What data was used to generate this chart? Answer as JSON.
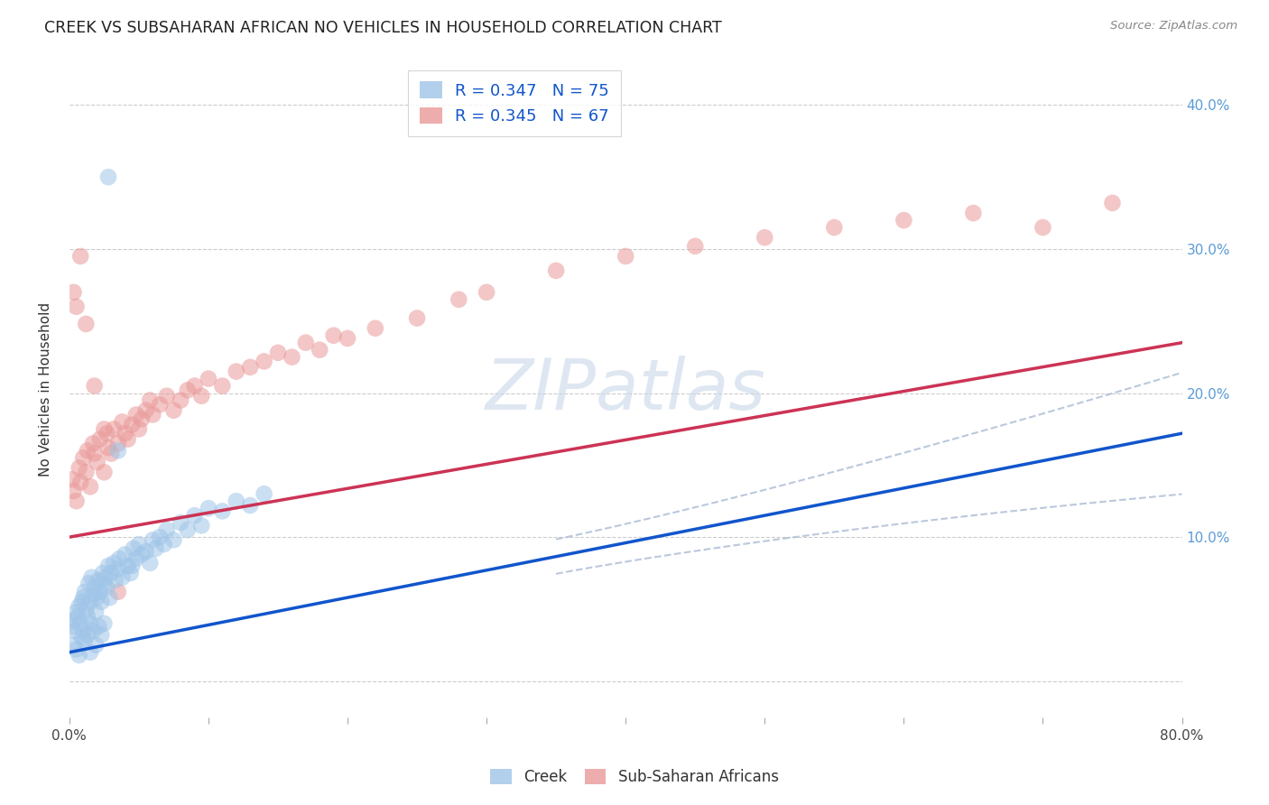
{
  "title": "CREEK VS SUBSAHARAN AFRICAN NO VEHICLES IN HOUSEHOLD CORRELATION CHART",
  "source": "Source: ZipAtlas.com",
  "ylabel": "No Vehicles in Household",
  "creek_color": "#9fc5e8",
  "subsaharan_color": "#ea9999",
  "creek_line_color": "#1155cc",
  "subsaharan_line_color": "#cc3355",
  "conf_band_color": "#aabbd4",
  "watermark_color": "#c8d8e8",
  "xlim": [
    0.0,
    0.8
  ],
  "ylim": [
    -0.025,
    0.43
  ],
  "xticks": [
    0.0,
    0.1,
    0.2,
    0.3,
    0.4,
    0.5,
    0.6,
    0.7,
    0.8
  ],
  "xticklabels": [
    "0.0%",
    "",
    "",
    "",
    "",
    "",
    "",
    "",
    "80.0%"
  ],
  "yticks": [
    0.0,
    0.1,
    0.2,
    0.3,
    0.4
  ],
  "right_yticklabels": [
    "",
    "10.0%",
    "20.0%",
    "30.0%",
    "40.0%"
  ],
  "creek_x": [
    0.002,
    0.003,
    0.004,
    0.005,
    0.006,
    0.007,
    0.008,
    0.009,
    0.01,
    0.01,
    0.011,
    0.012,
    0.013,
    0.014,
    0.015,
    0.015,
    0.016,
    0.017,
    0.018,
    0.019,
    0.02,
    0.021,
    0.022,
    0.023,
    0.024,
    0.025,
    0.026,
    0.027,
    0.028,
    0.029,
    0.03,
    0.032,
    0.033,
    0.035,
    0.036,
    0.038,
    0.04,
    0.042,
    0.044,
    0.046,
    0.048,
    0.05,
    0.052,
    0.055,
    0.058,
    0.06,
    0.062,
    0.065,
    0.068,
    0.07,
    0.075,
    0.08,
    0.085,
    0.09,
    0.095,
    0.1,
    0.11,
    0.12,
    0.13,
    0.14,
    0.003,
    0.005,
    0.007,
    0.009,
    0.011,
    0.013,
    0.015,
    0.017,
    0.019,
    0.021,
    0.023,
    0.025,
    0.028,
    0.035,
    0.045
  ],
  "creek_y": [
    0.038,
    0.042,
    0.035,
    0.048,
    0.045,
    0.052,
    0.04,
    0.055,
    0.058,
    0.035,
    0.062,
    0.05,
    0.045,
    0.068,
    0.055,
    0.04,
    0.072,
    0.06,
    0.065,
    0.048,
    0.058,
    0.07,
    0.062,
    0.055,
    0.075,
    0.068,
    0.072,
    0.065,
    0.08,
    0.058,
    0.075,
    0.082,
    0.07,
    0.078,
    0.085,
    0.072,
    0.088,
    0.08,
    0.075,
    0.092,
    0.085,
    0.095,
    0.088,
    0.09,
    0.082,
    0.098,
    0.092,
    0.1,
    0.095,
    0.105,
    0.098,
    0.11,
    0.105,
    0.115,
    0.108,
    0.12,
    0.118,
    0.125,
    0.122,
    0.13,
    0.025,
    0.022,
    0.018,
    0.03,
    0.028,
    0.032,
    0.02,
    0.035,
    0.025,
    0.038,
    0.032,
    0.04,
    0.35,
    0.16,
    0.08
  ],
  "subsaharan_x": [
    0.002,
    0.003,
    0.005,
    0.007,
    0.008,
    0.01,
    0.012,
    0.013,
    0.015,
    0.017,
    0.018,
    0.02,
    0.022,
    0.025,
    0.027,
    0.028,
    0.03,
    0.032,
    0.035,
    0.038,
    0.04,
    0.042,
    0.045,
    0.048,
    0.05,
    0.052,
    0.055,
    0.058,
    0.06,
    0.065,
    0.07,
    0.075,
    0.08,
    0.085,
    0.09,
    0.095,
    0.1,
    0.11,
    0.12,
    0.13,
    0.14,
    0.15,
    0.16,
    0.17,
    0.18,
    0.19,
    0.2,
    0.22,
    0.25,
    0.28,
    0.3,
    0.35,
    0.4,
    0.45,
    0.5,
    0.55,
    0.6,
    0.65,
    0.7,
    0.75,
    0.003,
    0.005,
    0.008,
    0.012,
    0.018,
    0.025,
    0.035
  ],
  "subsaharan_y": [
    0.14,
    0.132,
    0.125,
    0.148,
    0.138,
    0.155,
    0.145,
    0.16,
    0.135,
    0.165,
    0.158,
    0.152,
    0.168,
    0.145,
    0.172,
    0.162,
    0.158,
    0.175,
    0.165,
    0.18,
    0.172,
    0.168,
    0.178,
    0.185,
    0.175,
    0.182,
    0.188,
    0.195,
    0.185,
    0.192,
    0.198,
    0.188,
    0.195,
    0.202,
    0.205,
    0.198,
    0.21,
    0.205,
    0.215,
    0.218,
    0.222,
    0.228,
    0.225,
    0.235,
    0.23,
    0.24,
    0.238,
    0.245,
    0.252,
    0.265,
    0.27,
    0.285,
    0.295,
    0.302,
    0.308,
    0.315,
    0.32,
    0.325,
    0.315,
    0.332,
    0.27,
    0.26,
    0.295,
    0.248,
    0.205,
    0.175,
    0.062
  ]
}
